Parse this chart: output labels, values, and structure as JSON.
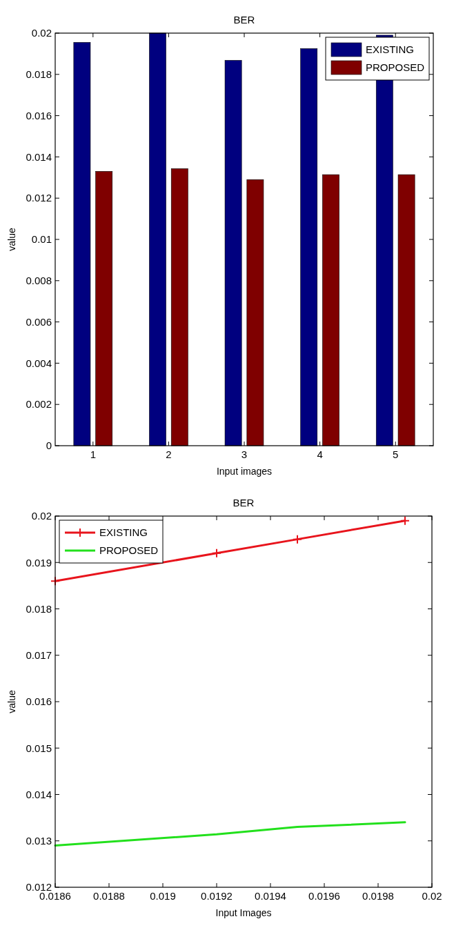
{
  "chart_data": [
    {
      "type": "bar",
      "title": "BER",
      "xlabel": "Input images",
      "ylabel": "value",
      "categories": [
        "1",
        "2",
        "3",
        "4",
        "5"
      ],
      "series": [
        {
          "name": "EXISTING",
          "color": "#00007f",
          "values": [
            0.01955,
            0.02,
            0.01868,
            0.01925,
            0.0199
          ]
        },
        {
          "name": "PROPOSED",
          "color": "#7f0000",
          "values": [
            0.0133,
            0.01343,
            0.0129,
            0.01314,
            0.01314
          ]
        }
      ],
      "ylim": [
        0,
        0.02
      ],
      "yticks": [
        0,
        0.002,
        0.004,
        0.006,
        0.008,
        0.01,
        0.012,
        0.014,
        0.016,
        0.018,
        0.02
      ],
      "legend": "top right",
      "grid": false
    },
    {
      "type": "line",
      "title": "BER",
      "xlabel": "Input Images",
      "ylabel": "value",
      "series": [
        {
          "name": "EXISTING",
          "color": "#e8141c",
          "marker": "cross",
          "x": [
            0.0186,
            0.0192,
            0.0195,
            0.0199
          ],
          "values": [
            0.0186,
            0.0192,
            0.0195,
            0.0199
          ]
        },
        {
          "name": "PROPOSED",
          "color": "#22e01c",
          "marker": "none",
          "x": [
            0.0186,
            0.0192,
            0.0195,
            0.0199
          ],
          "values": [
            0.0129,
            0.01314,
            0.0133,
            0.0134
          ]
        }
      ],
      "xlim": [
        0.0186,
        0.02
      ],
      "xticks": [
        0.0186,
        0.0188,
        0.019,
        0.0192,
        0.0194,
        0.0196,
        0.0198,
        0.02
      ],
      "ylim": [
        0.012,
        0.02
      ],
      "yticks": [
        0.012,
        0.013,
        0.014,
        0.015,
        0.016,
        0.017,
        0.018,
        0.019,
        0.02
      ],
      "legend": "top left",
      "grid": false,
      "line_style": "solid"
    }
  ]
}
